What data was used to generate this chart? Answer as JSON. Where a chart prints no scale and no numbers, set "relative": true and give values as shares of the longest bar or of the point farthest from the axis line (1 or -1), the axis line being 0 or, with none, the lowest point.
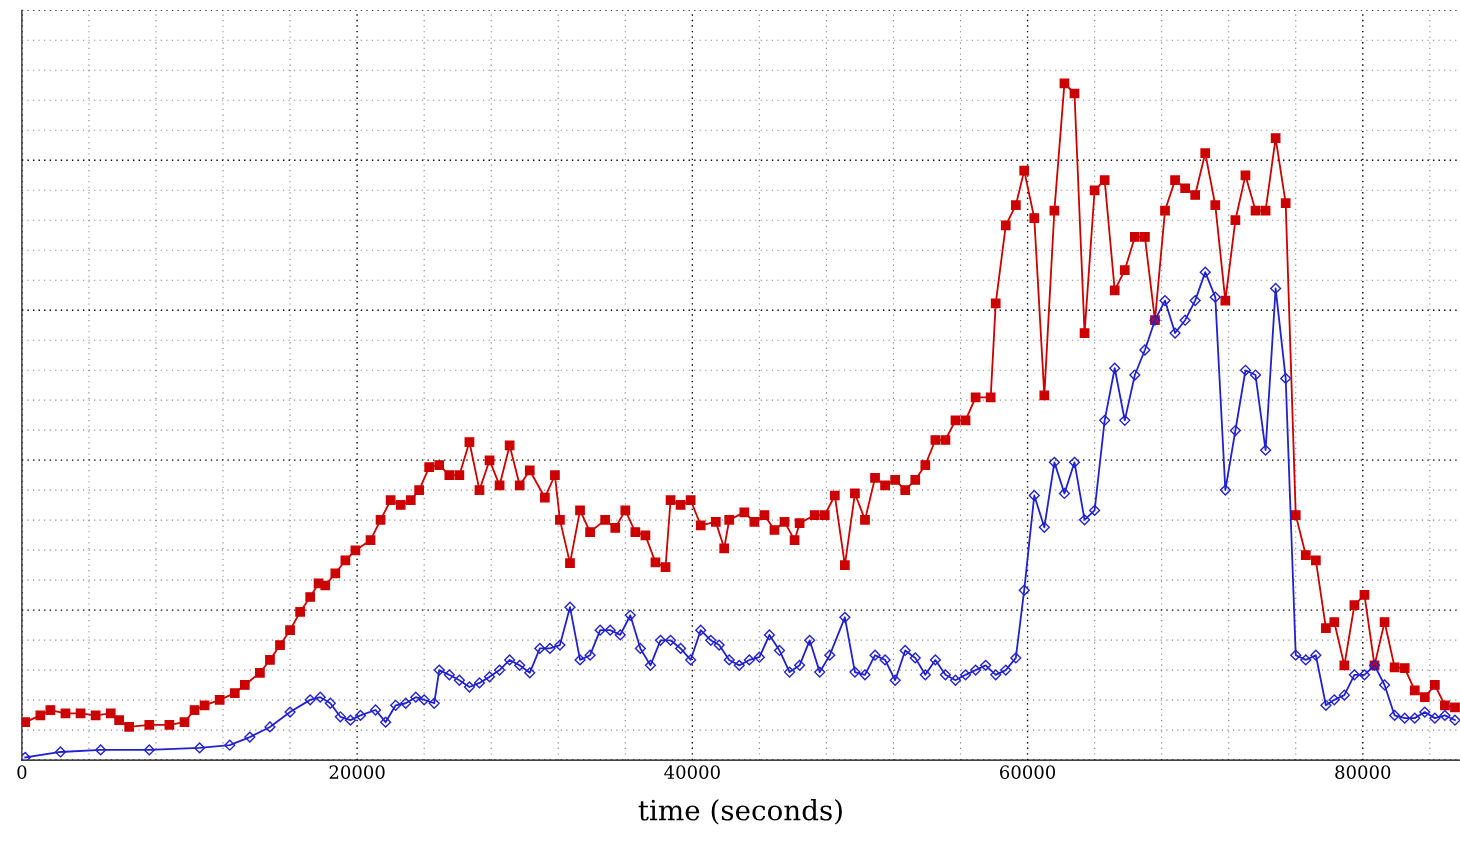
{
  "chart_data": {
    "type": "line",
    "xlabel": "time (seconds)",
    "relative": true,
    "grid": true,
    "tick_labels": "x",
    "xlim": [
      0,
      85800
    ],
    "xticks": [
      0,
      20000,
      40000,
      60000,
      80000
    ],
    "series": [
      {
        "color": "#cc0000",
        "marker": "square",
        "x": [
          200,
          1100,
          1700,
          2600,
          3500,
          4400,
          5300,
          5800,
          6400,
          7600,
          8800,
          9700,
          10300,
          10900,
          11800,
          12700,
          13300,
          14200,
          14800,
          15400,
          16000,
          16600,
          17200,
          17700,
          18100,
          18700,
          19300,
          19900,
          20800,
          21400,
          22000,
          22600,
          23200,
          23700,
          24300,
          24900,
          25500,
          26100,
          26700,
          27300,
          27900,
          28500,
          29100,
          29700,
          30300,
          31200,
          31800,
          32100,
          32700,
          33300,
          33900,
          34800,
          35400,
          36000,
          36600,
          37200,
          37800,
          38400,
          38700,
          39300,
          39900,
          40500,
          41400,
          41900,
          42200,
          43100,
          43700,
          44300,
          44900,
          45500,
          46100,
          46400,
          47300,
          47900,
          48500,
          49100,
          49700,
          50300,
          50900,
          51500,
          52100,
          52700,
          53300,
          53900,
          54500,
          55100,
          55700,
          56300,
          56900,
          57800,
          58100,
          58700,
          59300,
          59800,
          60400,
          61000,
          61600,
          62200,
          62800,
          63400,
          64000,
          64600,
          65200,
          65800,
          66400,
          67000,
          67600,
          68200,
          68800,
          69400,
          70000,
          70600,
          71200,
          71800,
          72400,
          73000,
          73600,
          74200,
          74800,
          75400,
          76000,
          76600,
          77200,
          77800,
          78300,
          78900,
          79500,
          80100,
          80700,
          81300,
          81900,
          82500,
          83100,
          83700,
          84300,
          84900,
          85500
        ],
        "values": [
          0.056,
          0.066,
          0.074,
          0.069,
          0.069,
          0.066,
          0.069,
          0.059,
          0.049,
          0.052,
          0.052,
          0.056,
          0.074,
          0.081,
          0.089,
          0.099,
          0.111,
          0.129,
          0.148,
          0.17,
          0.192,
          0.219,
          0.241,
          0.261,
          0.258,
          0.276,
          0.295,
          0.31,
          0.325,
          0.355,
          0.384,
          0.377,
          0.384,
          0.399,
          0.433,
          0.436,
          0.421,
          0.421,
          0.47,
          0.399,
          0.443,
          0.406,
          0.465,
          0.406,
          0.428,
          0.388,
          0.421,
          0.355,
          0.291,
          0.369,
          0.337,
          0.355,
          0.343,
          0.369,
          0.337,
          0.332,
          0.292,
          0.285,
          0.384,
          0.377,
          0.384,
          0.347,
          0.352,
          0.313,
          0.355,
          0.366,
          0.352,
          0.362,
          0.34,
          0.352,
          0.325,
          0.35,
          0.362,
          0.362,
          0.391,
          0.288,
          0.394,
          0.355,
          0.417,
          0.406,
          0.414,
          0.399,
          0.414,
          0.436,
          0.473,
          0.473,
          0.502,
          0.502,
          0.536,
          0.536,
          0.675,
          0.79,
          0.82,
          0.871,
          0.801,
          0.539,
          0.812,
          1.0,
          0.985,
          0.631,
          0.842,
          0.857,
          0.694,
          0.724,
          0.773,
          0.773,
          0.65,
          0.812,
          0.857,
          0.845,
          0.835,
          0.897,
          0.82,
          0.679,
          0.798,
          0.864,
          0.812,
          0.812,
          0.919,
          0.823,
          0.362,
          0.303,
          0.295,
          0.195,
          0.204,
          0.14,
          0.229,
          0.244,
          0.14,
          0.204,
          0.137,
          0.136,
          0.103,
          0.093,
          0.111,
          0.081,
          0.078
        ]
      },
      {
        "color": "#2222cc",
        "marker": "diamond",
        "x": [
          200,
          2300,
          4700,
          7600,
          10600,
          12400,
          13600,
          14800,
          16000,
          17200,
          17800,
          18400,
          19000,
          19600,
          20200,
          21100,
          21700,
          22300,
          22900,
          23500,
          24000,
          24600,
          24900,
          25500,
          26100,
          26700,
          27300,
          27900,
          28500,
          29100,
          29700,
          30300,
          30900,
          31500,
          32100,
          32700,
          33300,
          33900,
          34500,
          35100,
          35700,
          36300,
          36900,
          37500,
          38100,
          38700,
          39300,
          39900,
          40500,
          41100,
          41600,
          42200,
          42800,
          43400,
          44000,
          44600,
          45200,
          45800,
          46400,
          47000,
          47600,
          48200,
          49100,
          49700,
          50300,
          50900,
          51500,
          52100,
          52700,
          53300,
          53900,
          54500,
          55100,
          55700,
          56300,
          56900,
          57500,
          58100,
          58700,
          59300,
          59800,
          60400,
          61000,
          61600,
          62200,
          62800,
          63400,
          64000,
          64600,
          65200,
          65800,
          66400,
          67000,
          67600,
          68200,
          68800,
          69400,
          70000,
          70600,
          71200,
          71800,
          72400,
          73000,
          73600,
          74200,
          74800,
          75400,
          76000,
          76600,
          77200,
          77800,
          78300,
          78900,
          79500,
          80100,
          80700,
          81300,
          81900,
          82500,
          83100,
          83700,
          84300,
          84900,
          85500
        ],
        "values": [
          0.004,
          0.012,
          0.015,
          0.015,
          0.018,
          0.022,
          0.034,
          0.049,
          0.071,
          0.089,
          0.093,
          0.084,
          0.064,
          0.059,
          0.066,
          0.074,
          0.056,
          0.081,
          0.084,
          0.093,
          0.089,
          0.084,
          0.133,
          0.126,
          0.118,
          0.108,
          0.114,
          0.123,
          0.133,
          0.148,
          0.14,
          0.129,
          0.165,
          0.165,
          0.17,
          0.226,
          0.148,
          0.155,
          0.192,
          0.192,
          0.185,
          0.214,
          0.165,
          0.14,
          0.177,
          0.177,
          0.165,
          0.148,
          0.192,
          0.177,
          0.17,
          0.148,
          0.14,
          0.148,
          0.152,
          0.185,
          0.162,
          0.13,
          0.14,
          0.177,
          0.13,
          0.155,
          0.211,
          0.13,
          0.126,
          0.155,
          0.148,
          0.118,
          0.162,
          0.151,
          0.126,
          0.148,
          0.126,
          0.118,
          0.126,
          0.133,
          0.14,
          0.126,
          0.133,
          0.151,
          0.251,
          0.391,
          0.344,
          0.44,
          0.394,
          0.44,
          0.355,
          0.369,
          0.502,
          0.579,
          0.502,
          0.569,
          0.606,
          0.65,
          0.679,
          0.631,
          0.65,
          0.679,
          0.721,
          0.684,
          0.399,
          0.487,
          0.576,
          0.569,
          0.458,
          0.697,
          0.564,
          0.155,
          0.148,
          0.155,
          0.081,
          0.089,
          0.096,
          0.126,
          0.126,
          0.14,
          0.111,
          0.066,
          0.062,
          0.062,
          0.071,
          0.062,
          0.066,
          0.059
        ]
      }
    ]
  }
}
